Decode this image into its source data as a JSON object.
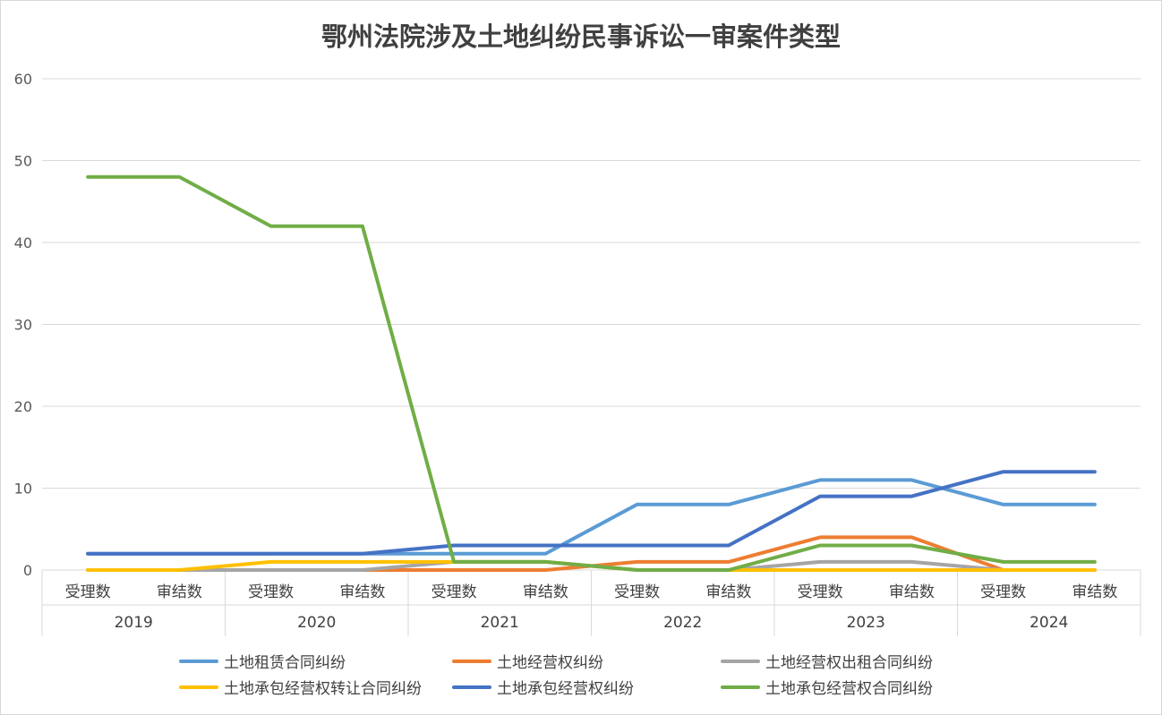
{
  "chart_data": {
    "type": "line",
    "title": "鄂州法院涉及土地纠纷民事诉讼一审案件类型",
    "xlabel": "",
    "ylabel": "",
    "ylim": [
      0,
      60
    ],
    "yticks": [
      0,
      10,
      20,
      30,
      40,
      50,
      60
    ],
    "grid": true,
    "legend_position": "bottom",
    "groups": [
      "2019",
      "2020",
      "2021",
      "2022",
      "2023",
      "2024"
    ],
    "subcategories": [
      "受理数",
      "审结数"
    ],
    "categories": [
      "2019 受理数",
      "2019 审结数",
      "2020 受理数",
      "2020 审结数",
      "2021 受理数",
      "2021 审结数",
      "2022 受理数",
      "2022 审结数",
      "2023 受理数",
      "2023 审结数",
      "2024 受理数",
      "2024 审结数"
    ],
    "series": [
      {
        "name": "土地租赁合同纠纷",
        "color": "#5b9bd5",
        "values": [
          2,
          2,
          2,
          2,
          2,
          2,
          8,
          8,
          11,
          11,
          8,
          8
        ]
      },
      {
        "name": "土地经营权纠纷",
        "color": "#ed7d31",
        "values": [
          0,
          0,
          0,
          0,
          0,
          0,
          1,
          1,
          4,
          4,
          0,
          0
        ]
      },
      {
        "name": "土地经营权出租合同纠纷",
        "color": "#a5a5a5",
        "values": [
          0,
          0,
          0,
          0,
          1,
          1,
          0,
          0,
          1,
          1,
          0,
          0
        ]
      },
      {
        "name": "土地承包经营权转让合同纠纷",
        "color": "#ffc000",
        "values": [
          0,
          0,
          1,
          1,
          1,
          1,
          0,
          0,
          0,
          0,
          0,
          0
        ]
      },
      {
        "name": "土地承包经营权纠纷",
        "color": "#4472c4",
        "values": [
          2,
          2,
          2,
          2,
          3,
          3,
          3,
          3,
          9,
          9,
          12,
          12
        ]
      },
      {
        "name": "土地承包经营权合同纠纷",
        "color": "#70ad47",
        "values": [
          48,
          48,
          42,
          42,
          1,
          1,
          0,
          0,
          3,
          3,
          1,
          1
        ]
      }
    ]
  }
}
